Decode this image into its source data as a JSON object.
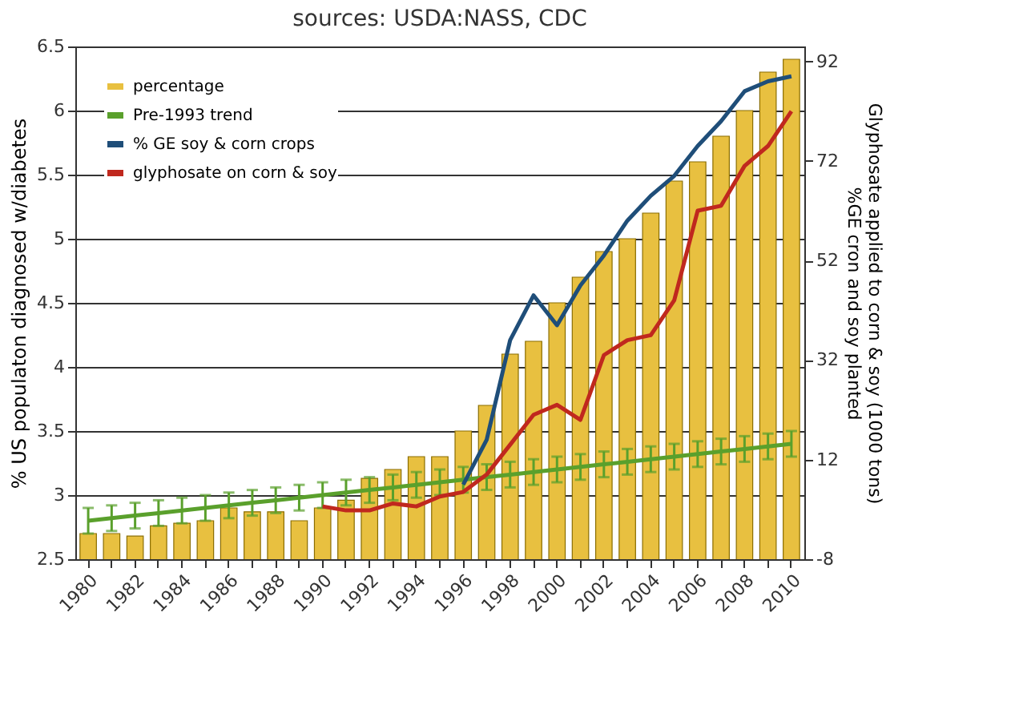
{
  "chart_data": {
    "type": "bar",
    "title": "sources: USDA:NASS, CDC",
    "ylabel": "% US populaton diagnosed w/diabetes",
    "y2label": "Glyphosate applied to corn & soy (1000 tons)\n%GE cron and soy planted",
    "categories": [
      "1980",
      null,
      "1982",
      null,
      "1984",
      null,
      "1986",
      null,
      "1988",
      null,
      "1990",
      null,
      "1992",
      null,
      "1994",
      null,
      "1996",
      null,
      "1998",
      null,
      "2000",
      null,
      "2002",
      null,
      "2004",
      null,
      "2006",
      null,
      "2008",
      null,
      "2010"
    ],
    "series": [
      {
        "name": "percentage",
        "color": "#e8c040",
        "values": [
          2.7,
          2.7,
          2.68,
          2.76,
          2.78,
          2.8,
          2.9,
          2.87,
          2.87,
          2.8,
          2.9,
          2.96,
          3.13,
          3.2,
          3.3,
          3.3,
          3.5,
          3.7,
          4.1,
          4.2,
          4.5,
          4.7,
          4.9,
          5.0,
          5.2,
          5.45,
          5.6,
          5.8,
          6.0,
          6.3,
          6.4
        ]
      },
      {
        "name": "Pre-1993 trend",
        "type": "line",
        "color": "#5aa02c",
        "values": [
          2.8,
          2.82,
          2.84,
          2.86,
          2.88,
          2.9,
          2.92,
          2.94,
          2.96,
          2.98,
          3.0,
          3.02,
          3.04,
          3.06,
          3.08,
          3.1,
          3.12,
          3.14,
          3.16,
          3.18,
          3.2,
          3.22,
          3.24,
          3.26,
          3.28,
          3.3,
          3.32,
          3.34,
          3.36,
          3.38,
          3.4
        ],
        "errors": [
          0.1,
          0.1,
          0.1,
          0.1,
          0.1,
          0.1,
          0.1,
          0.1,
          0.1,
          0.1,
          0.1,
          0.1,
          0.1,
          0.1,
          0.1,
          0.1,
          0.1,
          0.1,
          0.1,
          0.1,
          0.1,
          0.1,
          0.1,
          0.1,
          0.1,
          0.1,
          0.1,
          0.1,
          0.1,
          0.1,
          0.1
        ]
      },
      {
        "name": "% GE soy & corn crops",
        "type": "line",
        "axis": "y2",
        "color": "#1f4e79",
        "values": [
          null,
          null,
          null,
          null,
          null,
          null,
          null,
          null,
          null,
          null,
          null,
          null,
          null,
          null,
          null,
          null,
          7,
          16,
          36,
          45,
          39,
          47,
          53,
          60,
          65,
          69,
          75,
          80,
          86,
          88,
          89
        ]
      },
      {
        "name": "glyphosate on corn & soy",
        "type": "line",
        "axis": "y2",
        "color": "#c0281e",
        "values": [
          null,
          null,
          null,
          null,
          null,
          null,
          null,
          null,
          null,
          null,
          2.6,
          1.8,
          1.8,
          3.2,
          2.6,
          4.6,
          5.5,
          9,
          15,
          21,
          23,
          20,
          33,
          36,
          37,
          44,
          62,
          63,
          71,
          75,
          82
        ]
      }
    ],
    "ylim": [
      2.5,
      6.5
    ],
    "yticks": [
      2.5,
      3,
      3.5,
      4,
      4.5,
      5,
      5.5,
      6,
      6.5
    ],
    "y2lim": [
      -8,
      95
    ],
    "y2ticks": [
      -8,
      12,
      32,
      52,
      72,
      92
    ],
    "grid": "y",
    "legend": "top left"
  }
}
